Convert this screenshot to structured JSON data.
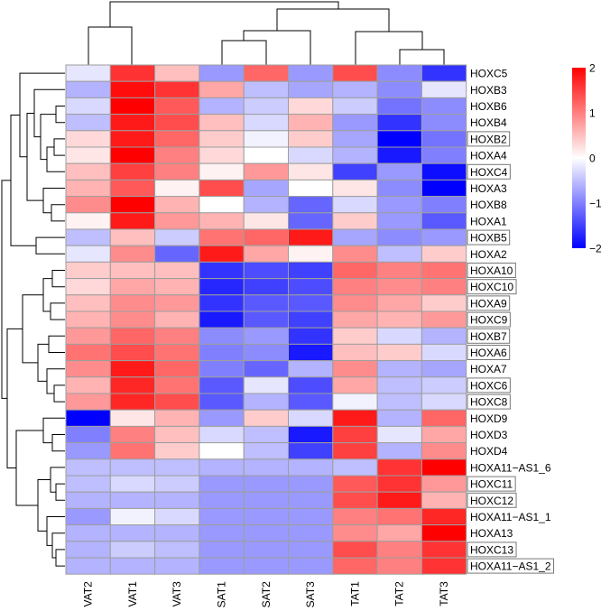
{
  "chart_data": {
    "type": "heatmap",
    "columns": [
      "VAT2",
      "VAT1",
      "VAT3",
      "SAT1",
      "SAT2",
      "SAT3",
      "TAT1",
      "TAT2",
      "TAT3"
    ],
    "rows": [
      {
        "label": "HOXC5",
        "boxed": false,
        "values": [
          -0.2,
          1.6,
          0.5,
          -0.8,
          1.2,
          -0.8,
          1.4,
          -0.9,
          -1.6
        ]
      },
      {
        "label": "HOXB3",
        "boxed": false,
        "values": [
          -0.6,
          1.9,
          1.6,
          0.7,
          -0.5,
          -0.7,
          -0.6,
          -0.9,
          -0.2
        ]
      },
      {
        "label": "HOXB6",
        "boxed": false,
        "values": [
          -0.3,
          2.0,
          1.3,
          -0.6,
          -0.4,
          0.3,
          -0.4,
          -1.1,
          -0.9
        ]
      },
      {
        "label": "HOXB4",
        "boxed": false,
        "values": [
          -0.5,
          1.8,
          1.4,
          0.5,
          -0.3,
          0.6,
          -0.8,
          -1.6,
          -0.9
        ]
      },
      {
        "label": "HOXB2",
        "boxed": true,
        "values": [
          0.3,
          1.8,
          1.2,
          0.4,
          -0.1,
          0.4,
          -0.7,
          -2.0,
          -1.1
        ]
      },
      {
        "label": "HOXA4",
        "boxed": false,
        "values": [
          0.2,
          2.0,
          1.0,
          0.3,
          0.0,
          -0.3,
          -0.6,
          -1.8,
          -1.0
        ]
      },
      {
        "label": "HOXC4",
        "boxed": true,
        "values": [
          0.5,
          1.5,
          1.0,
          0.1,
          0.8,
          0.2,
          -1.5,
          -0.8,
          -1.9
        ]
      },
      {
        "label": "HOXA3",
        "boxed": false,
        "values": [
          0.6,
          1.3,
          0.1,
          1.4,
          -0.7,
          0.0,
          0.2,
          -0.9,
          -2.0
        ]
      },
      {
        "label": "HOXB8",
        "boxed": false,
        "values": [
          0.9,
          2.0,
          0.6,
          0.0,
          -0.6,
          -1.2,
          -0.3,
          -0.8,
          -1.0
        ]
      },
      {
        "label": "HOXA1",
        "boxed": false,
        "values": [
          0.1,
          1.8,
          0.8,
          0.6,
          0.2,
          -1.2,
          0.4,
          -0.8,
          -1.3
        ]
      },
      {
        "label": "HOXB5",
        "boxed": true,
        "values": [
          -0.5,
          0.5,
          -0.4,
          1.1,
          1.2,
          1.8,
          -0.7,
          -0.9,
          -0.8
        ]
      },
      {
        "label": "HOXA2",
        "boxed": false,
        "values": [
          -0.2,
          0.9,
          -1.2,
          1.8,
          0.7,
          0.1,
          0.9,
          -0.5,
          0.4
        ]
      },
      {
        "label": "HOXA10",
        "boxed": true,
        "values": [
          0.4,
          0.5,
          0.5,
          -1.6,
          -1.4,
          -1.5,
          1.2,
          1.0,
          1.1
        ]
      },
      {
        "label": "HOXC10",
        "boxed": true,
        "values": [
          0.3,
          0.7,
          0.6,
          -1.7,
          -1.5,
          -1.4,
          1.0,
          0.9,
          1.0
        ]
      },
      {
        "label": "HOXA9",
        "boxed": true,
        "values": [
          0.5,
          0.9,
          0.8,
          -1.6,
          -1.3,
          -1.3,
          0.9,
          0.7,
          0.4
        ]
      },
      {
        "label": "HOXC9",
        "boxed": true,
        "values": [
          0.6,
          0.9,
          0.6,
          -1.8,
          -1.3,
          -1.5,
          0.7,
          0.6,
          0.8
        ]
      },
      {
        "label": "HOXB7",
        "boxed": true,
        "values": [
          0.8,
          1.2,
          1.0,
          -0.9,
          -0.8,
          -1.6,
          0.4,
          -0.3,
          -0.6
        ]
      },
      {
        "label": "HOXA6",
        "boxed": true,
        "values": [
          1.1,
          1.4,
          1.1,
          -1.0,
          -0.9,
          -1.8,
          0.5,
          0.4,
          -0.3
        ]
      },
      {
        "label": "HOXA7",
        "boxed": false,
        "values": [
          0.9,
          1.8,
          1.2,
          -1.0,
          -1.2,
          -0.6,
          0.9,
          -0.6,
          -0.7
        ]
      },
      {
        "label": "HOXC6",
        "boxed": true,
        "values": [
          0.6,
          1.7,
          1.1,
          -1.3,
          -0.2,
          -1.4,
          0.7,
          -0.5,
          -0.4
        ]
      },
      {
        "label": "HOXC8",
        "boxed": true,
        "values": [
          0.8,
          1.7,
          1.4,
          -1.3,
          -0.6,
          -1.3,
          -0.1,
          -0.5,
          -0.3
        ]
      },
      {
        "label": "HOXD9",
        "boxed": false,
        "values": [
          -2.0,
          0.2,
          0.6,
          -0.8,
          0.4,
          -0.3,
          1.8,
          -0.6,
          1.2
        ]
      },
      {
        "label": "HOXD3",
        "boxed": false,
        "values": [
          -1.0,
          1.0,
          0.5,
          -0.3,
          -0.5,
          -1.8,
          1.5,
          -0.2,
          0.7
        ]
      },
      {
        "label": "HOXD4",
        "boxed": false,
        "values": [
          -0.8,
          1.1,
          0.4,
          0.0,
          -0.5,
          -1.5,
          1.5,
          -0.6,
          0.9
        ]
      },
      {
        "label": "HOXA11−AS1_6",
        "boxed": false,
        "values": [
          -0.5,
          -0.5,
          -0.5,
          -0.6,
          -0.6,
          -0.6,
          -0.5,
          1.6,
          2.0
        ]
      },
      {
        "label": "HOXC11",
        "boxed": true,
        "values": [
          -0.5,
          -0.3,
          -0.4,
          -0.8,
          -0.8,
          -0.8,
          1.3,
          1.6,
          0.8
        ]
      },
      {
        "label": "HOXC12",
        "boxed": true,
        "values": [
          -0.6,
          -0.6,
          -0.6,
          -0.8,
          -0.8,
          -0.8,
          1.4,
          1.8,
          0.6
        ]
      },
      {
        "label": "HOXA11−AS1_1",
        "boxed": false,
        "values": [
          -0.8,
          -0.1,
          -0.3,
          -0.8,
          -0.8,
          -0.8,
          1.0,
          1.1,
          1.7
        ]
      },
      {
        "label": "HOXA13",
        "boxed": false,
        "values": [
          -0.6,
          -0.6,
          -0.6,
          -0.8,
          -0.8,
          -0.8,
          0.9,
          0.7,
          2.0
        ]
      },
      {
        "label": "HOXC13",
        "boxed": true,
        "values": [
          -0.6,
          -0.4,
          -0.5,
          -0.8,
          -0.8,
          -0.8,
          1.4,
          1.0,
          1.6
        ]
      },
      {
        "label": "HOXA11−AS1_2",
        "boxed": true,
        "values": [
          -0.6,
          -0.6,
          -0.6,
          -0.8,
          -0.8,
          -0.8,
          1.2,
          1.0,
          1.6
        ]
      }
    ],
    "color_scale": {
      "min": -2,
      "max": 2,
      "low_color": "#0000ff",
      "mid_color": "#ffffff",
      "high_color": "#ff0000"
    },
    "legend_ticks": [
      "2",
      "1",
      "0",
      "−1",
      "−2"
    ],
    "legend_tick_values": [
      2,
      1,
      0,
      -1,
      -2
    ],
    "legend_placement": "top-right",
    "cell_border_color": "#9e9e9e"
  }
}
